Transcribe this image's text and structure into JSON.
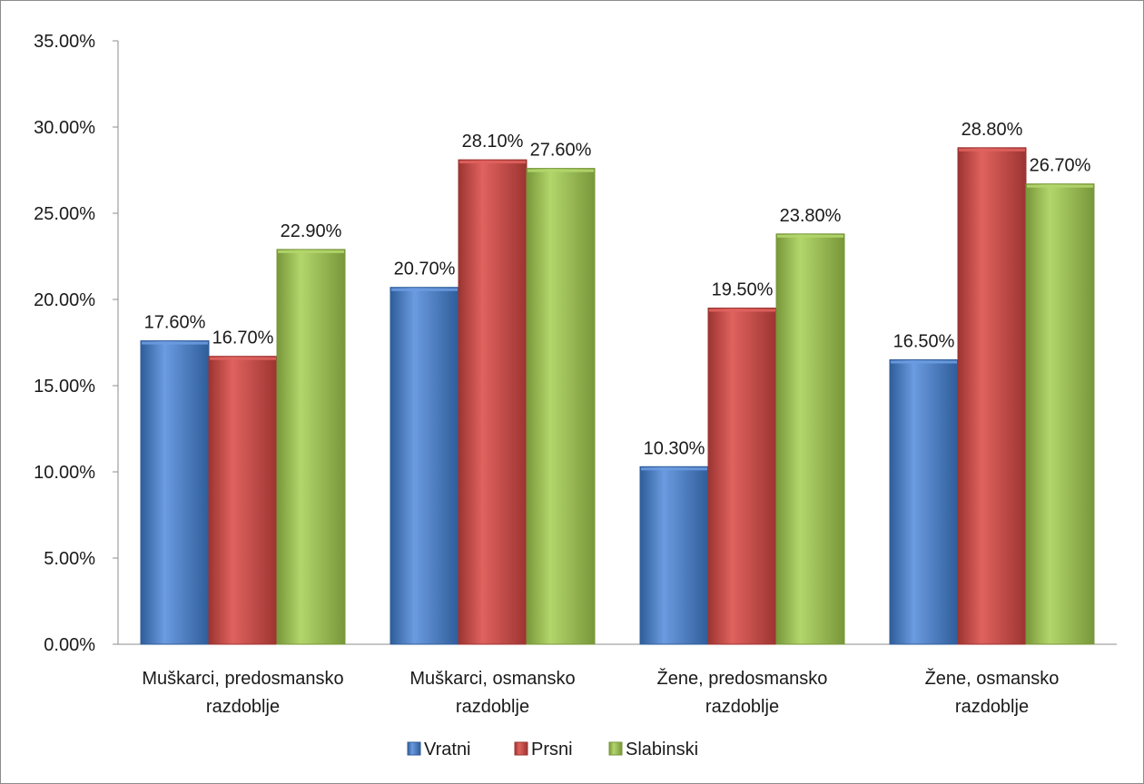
{
  "chart_data": {
    "type": "bar",
    "categories": [
      [
        "Muškarci, predosmansko",
        "razdoblje"
      ],
      [
        "Muškarci, osmansko",
        "razdoblje"
      ],
      [
        "Žene, predosmansko",
        "razdoblje"
      ],
      [
        "Žene, osmansko",
        "razdoblje"
      ]
    ],
    "series": [
      {
        "name": "Vratni",
        "values": [
          17.6,
          20.7,
          10.3,
          16.5
        ],
        "labels": [
          "17.60%",
          "20.70%",
          "10.30%",
          "16.50%"
        ],
        "color": "#4a7ebb",
        "color_light": "#6b9be0",
        "color_dark": "#2f5d9a"
      },
      {
        "name": "Prsni",
        "values": [
          16.7,
          28.1,
          19.5,
          28.8
        ],
        "labels": [
          "16.70%",
          "28.10%",
          "19.50%",
          "28.80%"
        ],
        "color": "#c0504d",
        "color_light": "#e0625e",
        "color_dark": "#9c3431"
      },
      {
        "name": "Slabinski",
        "values": [
          22.9,
          27.6,
          23.8,
          26.7
        ],
        "labels": [
          "22.90%",
          "27.60%",
          "23.80%",
          "26.70%"
        ],
        "color": "#9bbb59",
        "color_light": "#b3d66b",
        "color_dark": "#78973a"
      }
    ],
    "y_ticks": [
      "0.00%",
      "5.00%",
      "10.00%",
      "15.00%",
      "20.00%",
      "25.00%",
      "30.00%",
      "35.00%"
    ],
    "ylim": [
      0,
      35
    ],
    "title": "",
    "xlabel": "",
    "ylabel": "",
    "grid": false,
    "legend_position": "bottom"
  }
}
